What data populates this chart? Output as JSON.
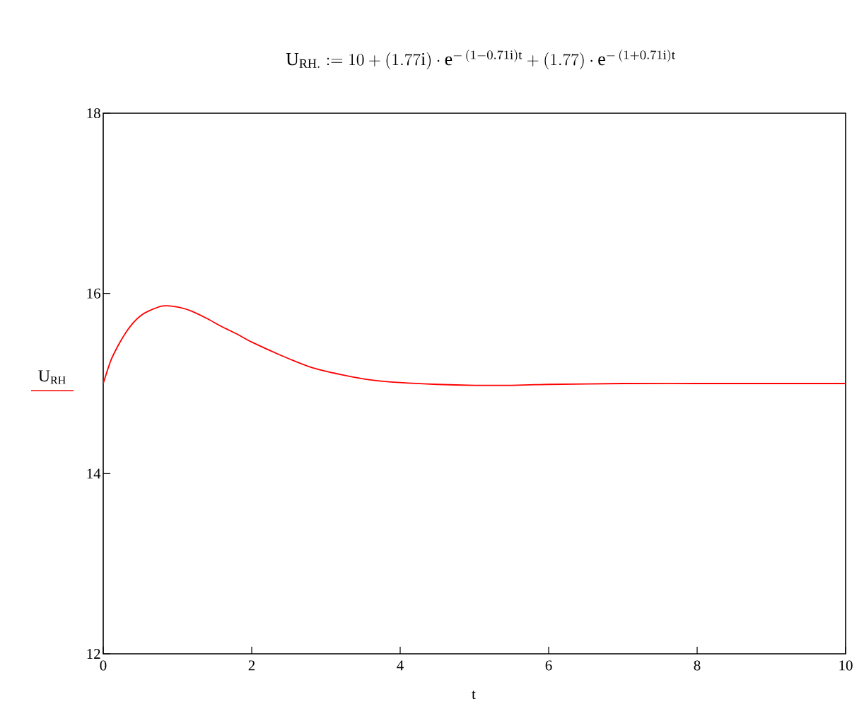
{
  "chart_data": {
    "type": "line",
    "title": "\\mathrm{U_{RH.}} := 10 + (1.77\\mathrm{i})\\cdot \\mathrm{e}^{-\\,(1-0.71\\mathrm{i})\\mathrm{t}} + (1.77)\\cdot \\mathrm{e}^{-\\,(1+0.71\\mathrm{i})\\mathrm{t}}",
    "xlabel": "t",
    "ylabel": "U$_{RH}$",
    "x": [
      0,
      0.1,
      0.2,
      0.3,
      0.4,
      0.5,
      0.6,
      0.8,
      1.0,
      1.2,
      1.4,
      1.6,
      1.8,
      2.0,
      2.4,
      2.8,
      3.2,
      3.6,
      4.0,
      4.5,
      5.0,
      5.5,
      6,
      7,
      8,
      10
    ],
    "series": [
      {
        "color": "#ff0000",
        "values": [
          15.0,
          15.25,
          15.42,
          15.56,
          15.67,
          15.75,
          15.8,
          15.86,
          15.85,
          15.8,
          15.72,
          15.63,
          15.55,
          15.46,
          15.31,
          15.18,
          15.1,
          15.04,
          15.01,
          14.99,
          14.98,
          14.98,
          14.99,
          15.0,
          15.0,
          15.0
        ]
      }
    ],
    "xlim": [
      0,
      10
    ],
    "ylim": [
      12,
      18
    ],
    "xticks": [
      0,
      2,
      4,
      6,
      8,
      10
    ],
    "yticks": [
      12,
      14,
      16,
      18
    ],
    "grid": false,
    "marker": "none",
    "line_style": "solid"
  }
}
